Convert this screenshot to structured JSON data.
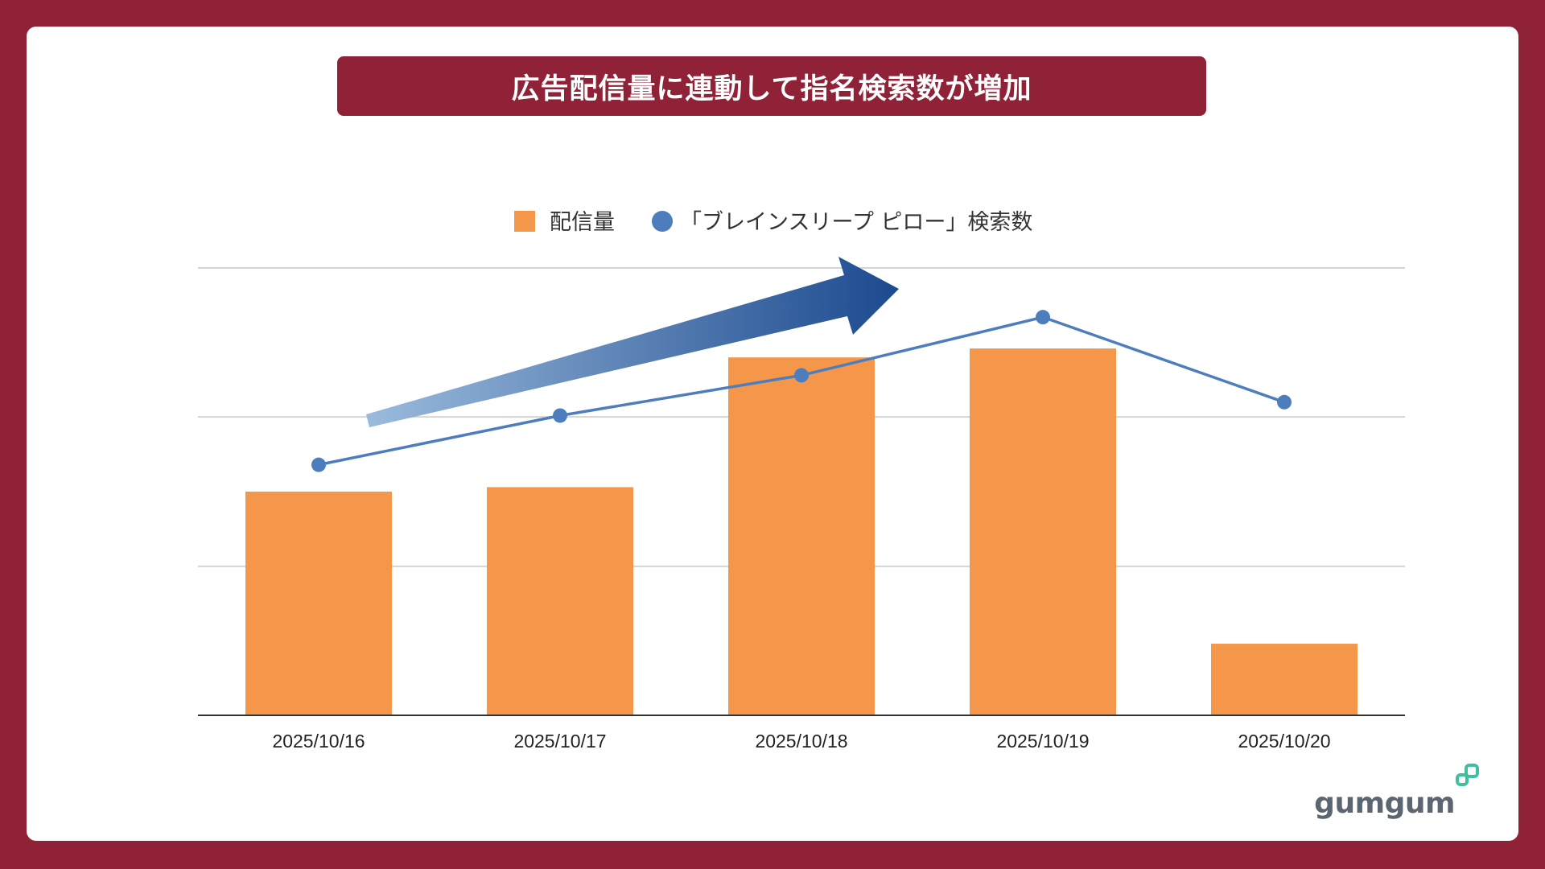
{
  "title": "広告配信量に連動して指名検索数が増加",
  "brand": {
    "logo_text": "gumgum",
    "accent_color": "#8f2236",
    "logo_icon_color": "#3fbf9f"
  },
  "chart_data": {
    "type": "bar+line",
    "categories": [
      "2025/10/16",
      "2025/10/17",
      "2025/10/18",
      "2025/10/19",
      "2025/10/20"
    ],
    "series": [
      {
        "name": "配信量",
        "type": "bar",
        "color": "#f5974a",
        "values": [
          50,
          51,
          80,
          82,
          16
        ]
      },
      {
        "name": "「ブレインスリープ ピロー」検索数",
        "type": "line",
        "color": "#4e7dbd",
        "values": [
          56,
          67,
          76,
          89,
          70
        ]
      }
    ],
    "ylim": [
      0,
      100
    ],
    "gridlines": [
      33.3,
      66.7,
      100
    ],
    "legend_position": "top-center",
    "annotation": "upward-trend-arrow"
  }
}
